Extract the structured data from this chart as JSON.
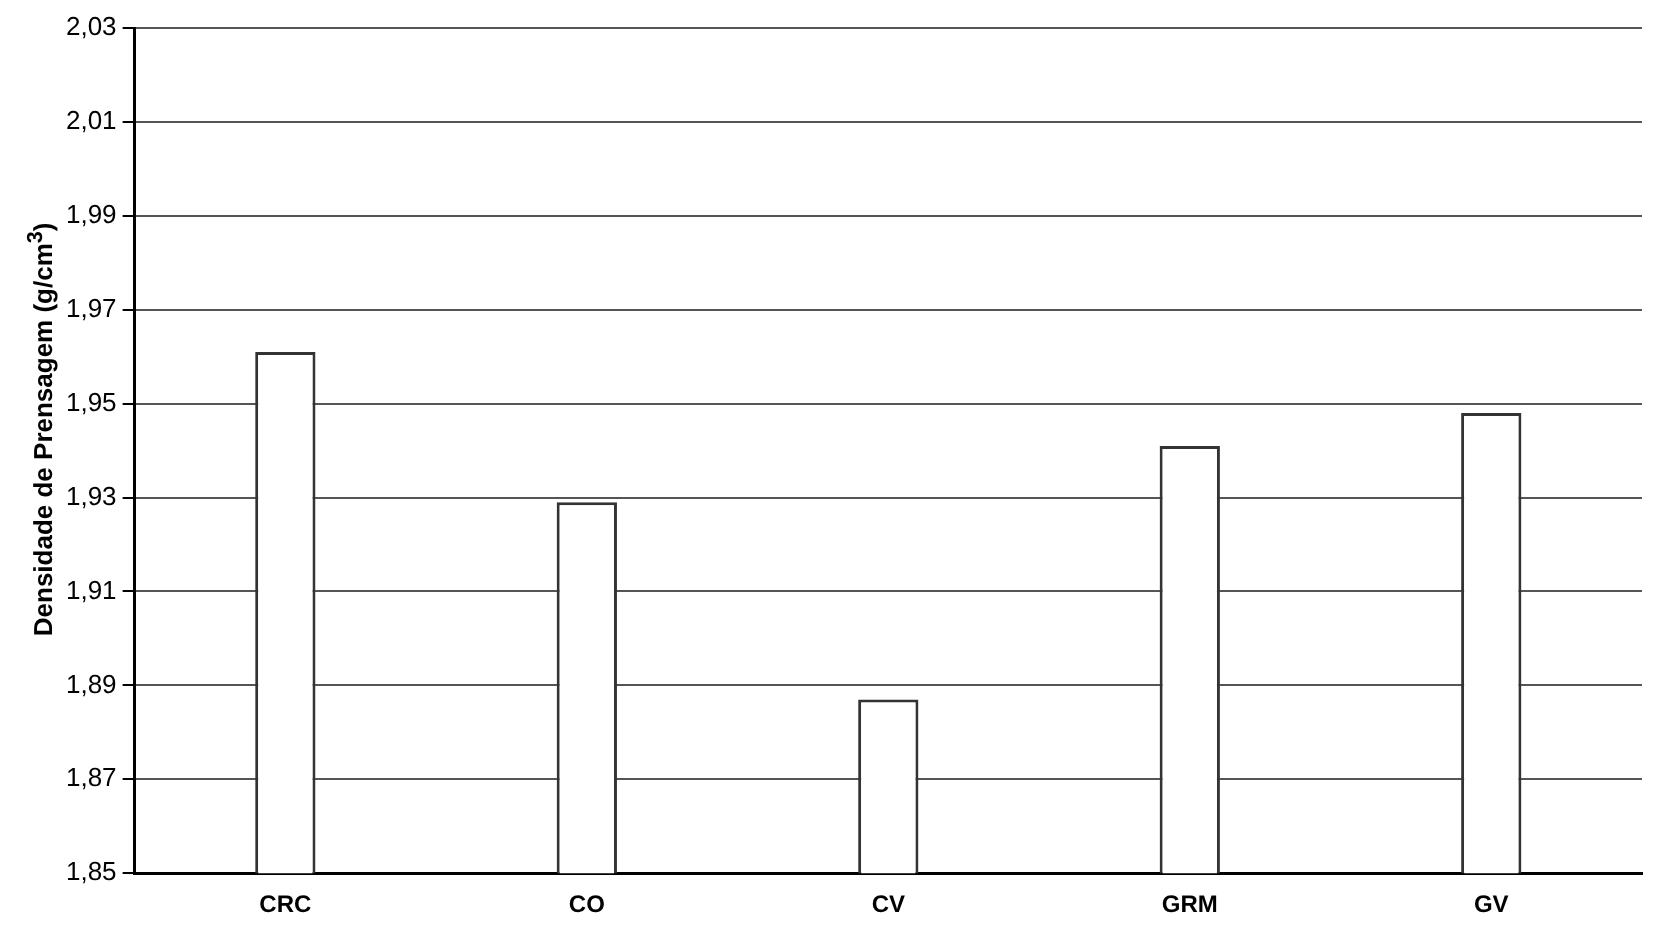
{
  "chart_data": {
    "type": "bar",
    "ylabel": "Densidade de Prensagem (g/cm$^{3}$)",
    "categories": [
      "CRC",
      "CO",
      "CV",
      "GRM",
      "GV"
    ],
    "values": [
      1.961,
      1.929,
      1.887,
      1.941,
      1.948
    ],
    "color": "#ffffff",
    "ylim": [
      1.85,
      2.03
    ],
    "yticks": [
      {
        "value": 1.85,
        "label": "1,85"
      },
      {
        "value": 1.87,
        "label": "1,87"
      },
      {
        "value": 1.89,
        "label": "1,89"
      },
      {
        "value": 1.91,
        "label": "1,91"
      },
      {
        "value": 1.93,
        "label": "1,93"
      },
      {
        "value": 1.95,
        "label": "1,95"
      },
      {
        "value": 1.97,
        "label": "1,97"
      },
      {
        "value": 1.99,
        "label": "1,99"
      },
      {
        "value": 2.01,
        "label": "2,01"
      },
      {
        "value": 2.03,
        "label": "2,03"
      }
    ],
    "grid": "y",
    "legend": false
  }
}
